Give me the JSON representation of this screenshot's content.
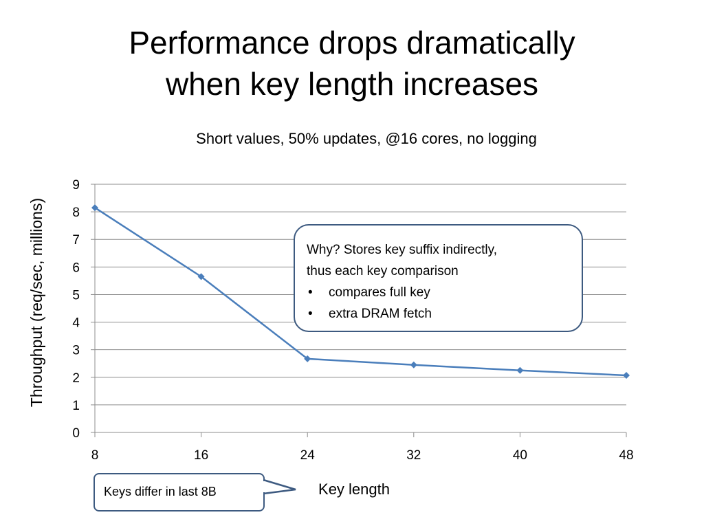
{
  "slide": {
    "title_line1": "Performance drops dramatically",
    "title_line2": "when key length increases"
  },
  "callout": {
    "line1": "Why? Stores key suffix indirectly,",
    "line2": "thus each key comparison",
    "bullets": [
      "compares full key",
      "extra DRAM fetch"
    ]
  },
  "note": {
    "text": "Keys differ in last 8B"
  },
  "chart_data": {
    "type": "line",
    "title": "Short values, 50% updates, @16 cores, no logging",
    "xlabel": "Key length",
    "ylabel": "Throughput (req/sec, millions)",
    "x": [
      8,
      16,
      24,
      32,
      40,
      48
    ],
    "series": [
      {
        "values": [
          8.15,
          5.65,
          2.67,
          2.45,
          2.25,
          2.07
        ]
      }
    ],
    "xlim": [
      8,
      48
    ],
    "ylim": [
      0,
      9
    ],
    "yticks": [
      0,
      1,
      2,
      3,
      4,
      5,
      6,
      7,
      8,
      9
    ],
    "xticks": [
      8,
      16,
      24,
      32,
      40,
      48
    ],
    "grid": true,
    "legend": "none",
    "series_color": "#4a7ebb",
    "marker": "diamond"
  }
}
